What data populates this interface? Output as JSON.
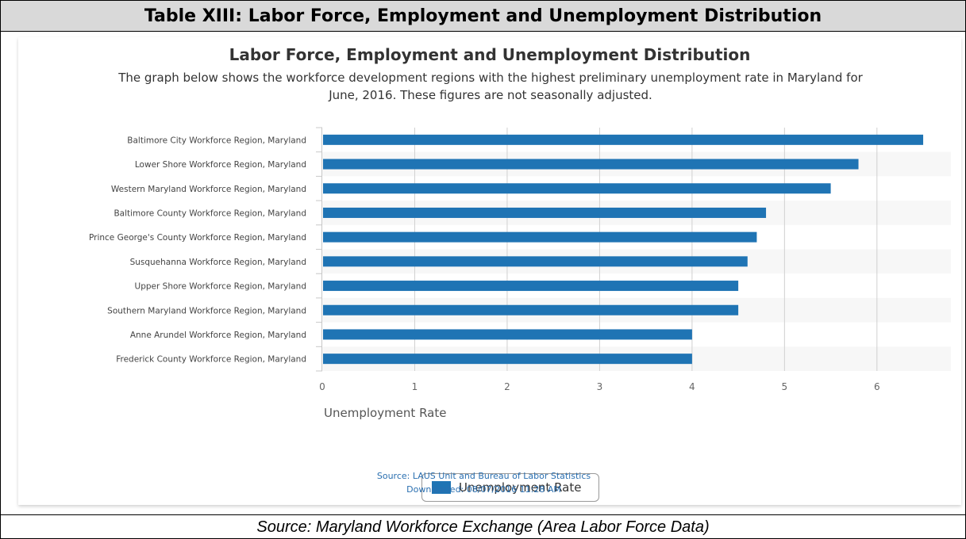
{
  "header": {
    "title": "Table XIII: Labor Force, Employment and Unemployment Distribution"
  },
  "chart": {
    "subtitle_line1": "The graph below shows the workforce development regions with the highest preliminary unemployment rate in Maryland for",
    "subtitle_line2": "June, 2016. These figures are not seasonally adjusted.",
    "source_line1": "Source: LAUS Unit and Bureau of Labor Statistics",
    "source_line2": "Downloaded: 08/07/2016 11:28 AM"
  },
  "footer": {
    "text": "Source: Maryland Workforce Exchange (Area Labor Force Data)"
  },
  "colors": {
    "bar": "#1f74b4",
    "grid": "#d0d0d0",
    "band": "#f7f7f7"
  },
  "chart_data": {
    "type": "bar",
    "orientation": "horizontal",
    "title": "Labor Force, Employment and Unemployment Distribution",
    "xlabel": "Unemployment Rate",
    "xlim": [
      0,
      6.8
    ],
    "xticks": [
      0,
      1,
      2,
      3,
      4,
      5,
      6
    ],
    "grid": true,
    "legend": "bottom-center",
    "categories": [
      "Baltimore City Workforce Region, Maryland",
      "Lower Shore Workforce Region, Maryland",
      "Western Maryland Workforce Region, Maryland",
      "Baltimore County Workforce Region, Maryland",
      "Prince George's County Workforce Region, Maryland",
      "Susquehanna Workforce Region, Maryland",
      "Upper Shore Workforce Region, Maryland",
      "Southern Maryland Workforce Region, Maryland",
      "Anne Arundel Workforce Region, Maryland",
      "Frederick County Workforce Region, Maryland"
    ],
    "series": [
      {
        "name": "Unemployment Rate",
        "values": [
          6.5,
          5.8,
          5.5,
          4.8,
          4.7,
          4.6,
          4.5,
          4.5,
          4.0,
          4.0
        ]
      }
    ]
  }
}
